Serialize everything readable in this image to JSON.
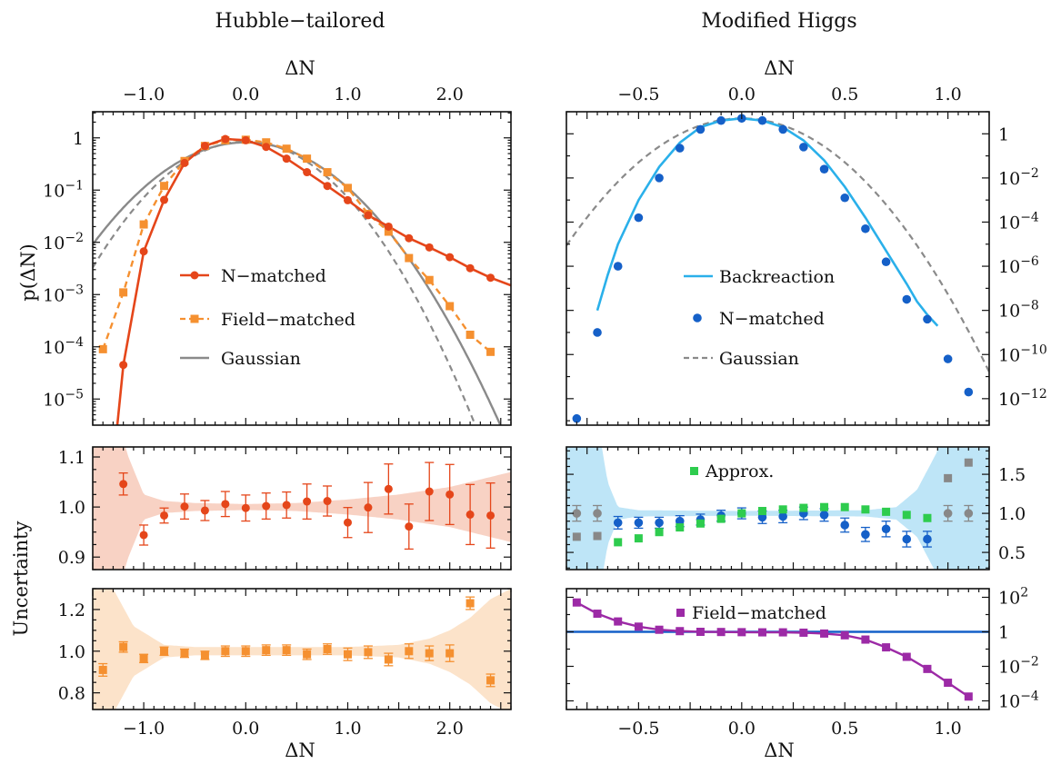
{
  "titles": {
    "left": "Hubble−tailored",
    "right": "Modified Higgs"
  },
  "axes": {
    "dn_label": "ΔN",
    "p_label": "p(ΔN)",
    "unc_label": "Uncertainty"
  },
  "colors": {
    "n_matched_left": "#e5461a",
    "field_matched_left": "#f59030",
    "gaussian": "#8a8a8a",
    "band_left_mid": "#f6c3b0",
    "band_left_bot": "#fbd9b8",
    "backreaction": "#2ab0ea",
    "n_matched_right": "#1560c8",
    "approx": "#2ecc4e",
    "band_right": "#a8dcf4",
    "reference_points": "#888888",
    "field_matched_right": "#9c2aa6",
    "reference_line": "#1560c8"
  },
  "chart_data": [
    {
      "panel": "left-top",
      "type": "line",
      "xlabel": "ΔN",
      "ylabel": "p(ΔN)",
      "xlim": [
        -1.5,
        2.6
      ],
      "ylim_log10": [
        -5.5,
        0.5
      ],
      "x_ticks": [
        "−1.0",
        "0.0",
        "1.0",
        "2.0"
      ],
      "y_ticks": [
        "10^−5",
        "10^−4",
        "10^−3",
        "10^−2",
        "10^−1",
        "1"
      ],
      "legend": [
        "N−matched",
        "Field−matched",
        "Gaussian"
      ],
      "legend_position": "center-left",
      "series": [
        {
          "name": "N−matched",
          "style": "line+circle-markers",
          "x": [
            -1.2,
            -1.0,
            -0.8,
            -0.6,
            -0.4,
            -0.2,
            0.0,
            0.2,
            0.4,
            0.6,
            0.8,
            1.0,
            1.2,
            1.4,
            1.6,
            1.8,
            2.0,
            2.2,
            2.4
          ],
          "y": [
            4.5e-05,
            0.0067,
            0.065,
            0.33,
            0.7,
            0.95,
            0.9,
            0.67,
            0.4,
            0.22,
            0.12,
            0.064,
            0.033,
            0.02,
            0.012,
            0.008,
            0.0052,
            0.0032,
            0.0021
          ]
        },
        {
          "name": "Field−matched",
          "style": "dashed+square-markers",
          "x": [
            -1.4,
            -1.2,
            -1.0,
            -0.8,
            -0.6,
            -0.4,
            -0.2,
            0.0,
            0.2,
            0.4,
            0.6,
            0.8,
            1.0,
            1.2,
            1.4,
            1.6,
            1.8,
            2.0,
            2.2,
            2.4
          ],
          "y": [
            9e-05,
            0.0011,
            0.022,
            0.12,
            0.36,
            0.7,
            0.9,
            0.92,
            0.82,
            0.62,
            0.4,
            0.22,
            0.11,
            0.035,
            0.016,
            0.005,
            0.0019,
            0.0006,
            0.00017,
            8e-05
          ]
        },
        {
          "name": "Gaussian",
          "style": "solid",
          "mean": 0.0,
          "sigma": 0.5,
          "peak": 0.82
        },
        {
          "name": "",
          "style": "dashed-gray",
          "mean": 0.0,
          "sigma": 0.45,
          "peak": 0.85
        }
      ]
    },
    {
      "panel": "left-middle",
      "type": "scatter",
      "ylabel": "Uncertainty",
      "xlim": [
        -1.5,
        2.6
      ],
      "ylim": [
        0.875,
        1.12
      ],
      "y_ticks": [
        "0.9",
        "1.0",
        "1.1"
      ],
      "series": [
        {
          "name": "N−matched ratio",
          "style": "circle+errorbar",
          "x": [
            -1.2,
            -1.0,
            -0.8,
            -0.6,
            -0.4,
            -0.2,
            0.0,
            0.2,
            0.4,
            0.6,
            0.8,
            1.0,
            1.2,
            1.4,
            1.6,
            1.8,
            2.0,
            2.2,
            2.4
          ],
          "y": [
            1.046,
            0.944,
            0.983,
            1.001,
            0.993,
            1.006,
            0.998,
            1.002,
            1.004,
            1.011,
            1.012,
            0.969,
            0.999,
            1.036,
            0.961,
            1.031,
            1.025,
            0.985,
            0.983
          ],
          "err": [
            0.022,
            0.02,
            0.015,
            0.025,
            0.02,
            0.025,
            0.026,
            0.026,
            0.026,
            0.035,
            0.03,
            0.03,
            0.05,
            0.05,
            0.045,
            0.058,
            0.06,
            0.06,
            0.065
          ]
        }
      ],
      "band": {
        "x": [
          -1.5,
          -1.3,
          -1.15,
          -1.0,
          -0.8,
          -0.5,
          0.0,
          0.5,
          1.0,
          1.5,
          2.0,
          2.3,
          2.6
        ],
        "half_width": [
          0.2,
          0.2,
          0.1,
          0.025,
          0.012,
          0.008,
          0.006,
          0.008,
          0.015,
          0.025,
          0.04,
          0.055,
          0.07
        ]
      }
    },
    {
      "panel": "left-bottom",
      "type": "scatter",
      "xlabel": "ΔN",
      "xlim": [
        -1.5,
        2.6
      ],
      "ylim": [
        0.72,
        1.3
      ],
      "y_ticks": [
        "0.8",
        "1.0",
        "1.2"
      ],
      "series": [
        {
          "name": "Field−matched ratio",
          "style": "square+errorbar",
          "x": [
            -1.4,
            -1.2,
            -1.0,
            -0.8,
            -0.6,
            -0.4,
            -0.2,
            0.0,
            0.2,
            0.4,
            0.6,
            0.8,
            1.0,
            1.2,
            1.4,
            1.6,
            1.8,
            2.0,
            2.2,
            2.4
          ],
          "y": [
            0.91,
            1.02,
            0.965,
            1.0,
            0.99,
            0.98,
            1.0,
            1.0,
            1.005,
            1.005,
            0.985,
            1.01,
            0.985,
            0.995,
            0.96,
            1.0,
            0.99,
            0.99,
            1.23,
            0.86
          ],
          "err": [
            0.03,
            0.025,
            0.02,
            0.02,
            0.02,
            0.02,
            0.025,
            0.025,
            0.025,
            0.025,
            0.025,
            0.025,
            0.03,
            0.03,
            0.03,
            0.035,
            0.035,
            0.04,
            0.03,
            0.03
          ]
        }
      ],
      "band": {
        "x": [
          -1.5,
          -1.3,
          -1.1,
          -0.8,
          -0.5,
          0.0,
          0.5,
          1.0,
          1.5,
          1.8,
          2.0,
          2.2,
          2.4,
          2.6
        ],
        "half_width": [
          0.3,
          0.3,
          0.12,
          0.03,
          0.02,
          0.02,
          0.02,
          0.02,
          0.03,
          0.06,
          0.1,
          0.16,
          0.25,
          0.3
        ]
      }
    },
    {
      "panel": "right-top",
      "type": "line",
      "xlabel": "ΔN",
      "xlim": [
        -0.85,
        1.2
      ],
      "ylim_log10": [
        -13.2,
        1.0
      ],
      "x_ticks": [
        "−0.5",
        "0.0",
        "0.5",
        "1.0"
      ],
      "y_ticks": [
        "10^−12",
        "10^−10",
        "10^−8",
        "10^−6",
        "10^−4",
        "10^−2",
        "1"
      ],
      "legend": [
        "Backreaction",
        "N−matched",
        "Gaussian"
      ],
      "legend_position": "center",
      "series": [
        {
          "name": "Backreaction",
          "style": "solid",
          "x": [
            -0.7,
            -0.65,
            -0.6,
            -0.5,
            -0.4,
            -0.3,
            -0.2,
            -0.1,
            0.0,
            0.1,
            0.2,
            0.3,
            0.4,
            0.5,
            0.6,
            0.7,
            0.8,
            0.85,
            0.9,
            0.95
          ],
          "log10_y": [
            -8.0,
            -6.4,
            -5.0,
            -3.0,
            -1.5,
            -0.4,
            0.3,
            0.6,
            0.7,
            0.6,
            0.3,
            -0.3,
            -1.2,
            -2.4,
            -3.8,
            -5.3,
            -6.8,
            -7.6,
            -8.2,
            -8.7
          ]
        },
        {
          "name": "N−matched",
          "style": "circle-markers",
          "x": [
            -0.8,
            -0.7,
            -0.6,
            -0.5,
            -0.4,
            -0.3,
            -0.2,
            -0.1,
            0.0,
            0.1,
            0.2,
            0.3,
            0.4,
            0.5,
            0.6,
            0.7,
            0.8,
            0.9,
            1.0,
            1.1
          ],
          "log10_y": [
            -12.9,
            -9.0,
            -6.0,
            -3.8,
            -2.0,
            -0.65,
            0.2,
            0.6,
            0.7,
            0.6,
            0.2,
            -0.6,
            -1.6,
            -2.9,
            -4.3,
            -5.8,
            -7.5,
            -8.4,
            -10.2,
            -11.7
          ]
        },
        {
          "name": "Gaussian",
          "style": "dashed",
          "mean": 0.0,
          "sigma": 0.165,
          "log10_peak": 0.7
        }
      ]
    },
    {
      "panel": "right-middle",
      "type": "scatter",
      "xlim": [
        -0.85,
        1.2
      ],
      "ylim": [
        0.28,
        1.85
      ],
      "y_ticks": [
        "0.5",
        "1.0",
        "1.5"
      ],
      "legend": [
        "Approx."
      ],
      "series": [
        {
          "name": "N−matched ratio",
          "style": "circle+errorbar",
          "x": [
            -0.6,
            -0.5,
            -0.4,
            -0.3,
            -0.2,
            -0.1,
            0.0,
            0.1,
            0.2,
            0.3,
            0.4,
            0.5,
            0.6,
            0.7,
            0.8,
            0.9
          ],
          "y": [
            0.88,
            0.88,
            0.88,
            0.9,
            0.92,
            0.97,
            1.0,
            0.95,
            0.96,
            1.0,
            0.98,
            0.85,
            0.73,
            0.8,
            0.67,
            0.67
          ],
          "err": [
            0.08,
            0.07,
            0.07,
            0.07,
            0.07,
            0.07,
            0.07,
            0.08,
            0.08,
            0.08,
            0.08,
            0.09,
            0.09,
            0.1,
            0.1,
            0.1
          ]
        },
        {
          "name": "Approx.",
          "style": "square",
          "x": [
            -0.6,
            -0.5,
            -0.4,
            -0.3,
            -0.2,
            -0.1,
            0.0,
            0.1,
            0.2,
            0.3,
            0.4,
            0.5,
            0.6,
            0.7,
            0.8,
            0.9
          ],
          "y": [
            0.63,
            0.68,
            0.76,
            0.82,
            0.87,
            0.93,
            1.0,
            1.03,
            1.05,
            1.07,
            1.08,
            1.08,
            1.05,
            1.02,
            0.98,
            0.94
          ]
        },
        {
          "name": "",
          "style": "gray-circle+errorbar",
          "x": [
            -0.8,
            -0.7,
            1.0,
            1.1
          ],
          "y": [
            1.0,
            1.0,
            1.0,
            1.0
          ],
          "err": [
            0.1,
            0.1,
            0.1,
            0.1
          ]
        },
        {
          "name": "",
          "style": "gray-square",
          "x": [
            -0.8,
            -0.7,
            1.0,
            1.1
          ],
          "y": [
            0.7,
            0.71,
            1.45,
            1.65
          ]
        }
      ],
      "band": {
        "x": [
          -0.85,
          -0.75,
          -0.7,
          -0.65,
          -0.6,
          -0.5,
          0.0,
          0.6,
          0.75,
          0.85,
          0.95,
          1.0,
          1.2
        ],
        "half_width": [
          1.6,
          1.6,
          1.2,
          0.4,
          0.08,
          0.04,
          0.03,
          0.04,
          0.08,
          0.3,
          0.8,
          1.6,
          1.6
        ]
      }
    },
    {
      "panel": "right-bottom",
      "type": "line",
      "xlabel": "ΔN",
      "xlim": [
        -0.85,
        1.2
      ],
      "ylim_log10": [
        -4.5,
        2.5
      ],
      "x_ticks": [
        "−0.5",
        "0.0",
        "0.5",
        "1.0"
      ],
      "y_ticks": [
        "10^−4",
        "10^−2",
        "1",
        "10^2"
      ],
      "legend": [
        "Field−matched"
      ],
      "series": [
        {
          "name": "Field−matched",
          "style": "line+square-markers",
          "x": [
            -0.8,
            -0.7,
            -0.6,
            -0.5,
            -0.4,
            -0.3,
            -0.2,
            -0.1,
            0.0,
            0.1,
            0.2,
            0.3,
            0.4,
            0.5,
            0.6,
            0.7,
            0.8,
            0.9,
            1.0,
            1.1
          ],
          "log10_y": [
            1.7,
            1.05,
            0.6,
            0.3,
            0.12,
            0.04,
            0.0,
            -0.01,
            -0.02,
            -0.03,
            -0.03,
            -0.05,
            -0.1,
            -0.2,
            -0.45,
            -0.9,
            -1.45,
            -2.15,
            -2.95,
            -3.75
          ]
        },
        {
          "name": "",
          "style": "horizontal-line",
          "log10_y": [
            0.0,
            0.0
          ]
        }
      ]
    }
  ]
}
